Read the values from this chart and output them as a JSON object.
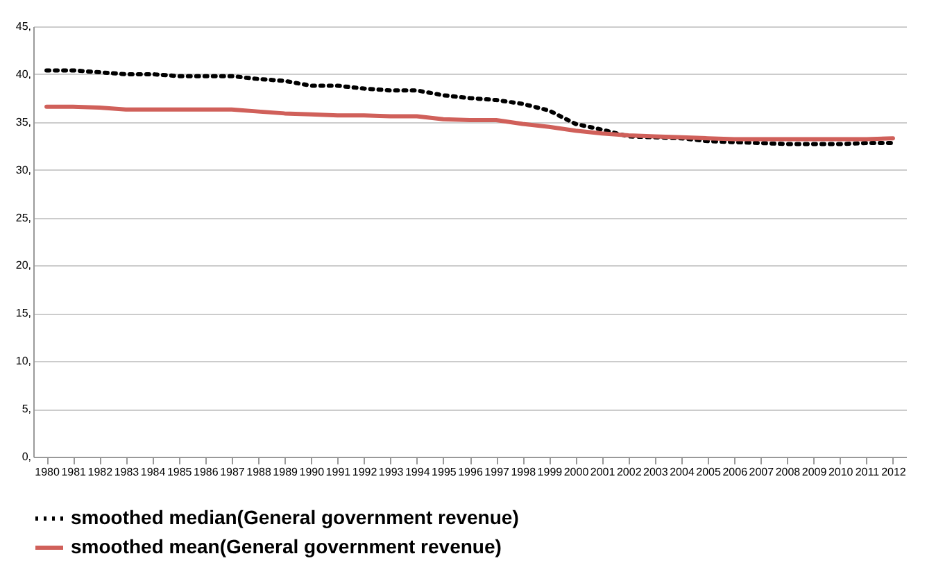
{
  "chart_data": {
    "type": "line",
    "categories": [
      "1980",
      "1981",
      "1982",
      "1983",
      "1984",
      "1985",
      "1986",
      "1987",
      "1988",
      "1989",
      "1990",
      "1991",
      "1992",
      "1993",
      "1994",
      "1995",
      "1996",
      "1997",
      "1998",
      "1999",
      "2000",
      "2001",
      "2002",
      "2003",
      "2004",
      "2005",
      "2006",
      "2007",
      "2008",
      "2009",
      "2010",
      "2011",
      "2012"
    ],
    "series": [
      {
        "name": "smoothed median(General government revenue)",
        "color": "#000000",
        "line_style": "dotted",
        "values": [
          40.4,
          40.4,
          40.2,
          40.0,
          40.0,
          39.8,
          39.8,
          39.8,
          39.5,
          39.3,
          38.8,
          38.8,
          38.5,
          38.3,
          38.3,
          37.8,
          37.5,
          37.3,
          36.9,
          36.2,
          34.8,
          34.2,
          33.5,
          33.4,
          33.3,
          33.0,
          32.9,
          32.8,
          32.7,
          32.7,
          32.7,
          32.8,
          32.8
        ]
      },
      {
        "name": "smoothed mean(General government revenue)",
        "color": "#d0605a",
        "line_style": "solid",
        "values": [
          36.6,
          36.6,
          36.5,
          36.3,
          36.3,
          36.3,
          36.3,
          36.3,
          36.1,
          35.9,
          35.8,
          35.7,
          35.7,
          35.6,
          35.6,
          35.3,
          35.2,
          35.2,
          34.8,
          34.5,
          34.1,
          33.8,
          33.6,
          33.5,
          33.4,
          33.3,
          33.2,
          33.2,
          33.2,
          33.2,
          33.2,
          33.2,
          33.3
        ]
      }
    ],
    "ylim": [
      0,
      45
    ],
    "yticks": [
      {
        "value": 0,
        "label": "0,"
      },
      {
        "value": 5,
        "label": "5,"
      },
      {
        "value": 10,
        "label": "10,"
      },
      {
        "value": 15,
        "label": "15,"
      },
      {
        "value": 20,
        "label": "20,"
      },
      {
        "value": 25,
        "label": "25,"
      },
      {
        "value": 30,
        "label": "30,"
      },
      {
        "value": 35,
        "label": "35,"
      },
      {
        "value": 40,
        "label": "40,"
      },
      {
        "value": 45,
        "label": "45,"
      }
    ],
    "grid": "y",
    "legend": "bottom",
    "marker": "none"
  }
}
